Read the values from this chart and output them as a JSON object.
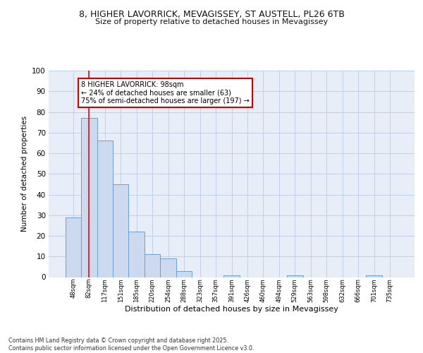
{
  "title_line1": "8, HIGHER LAVORRICK, MEVAGISSEY, ST AUSTELL, PL26 6TB",
  "title_line2": "Size of property relative to detached houses in Mevagissey",
  "xlabel": "Distribution of detached houses by size in Mevagissey",
  "ylabel": "Number of detached properties",
  "categories": [
    "48sqm",
    "82sqm",
    "117sqm",
    "151sqm",
    "185sqm",
    "220sqm",
    "254sqm",
    "288sqm",
    "323sqm",
    "357sqm",
    "391sqm",
    "426sqm",
    "460sqm",
    "494sqm",
    "529sqm",
    "563sqm",
    "598sqm",
    "632sqm",
    "666sqm",
    "701sqm",
    "735sqm"
  ],
  "values": [
    29,
    77,
    66,
    45,
    22,
    11,
    9,
    3,
    0,
    0,
    1,
    0,
    0,
    0,
    1,
    0,
    0,
    0,
    0,
    1,
    0
  ],
  "bar_color": "#ccd9ee",
  "bar_edge_color": "#6b9fd4",
  "grid_color": "#c0cfe8",
  "bg_color": "#e8eef8",
  "red_line_x": 1,
  "annotation_text": "8 HIGHER LAVORRICK: 98sqm\n← 24% of detached houses are smaller (63)\n75% of semi-detached houses are larger (197) →",
  "annotation_box_color": "#ffffff",
  "annotation_box_edge": "#cc0000",
  "footnote": "Contains HM Land Registry data © Crown copyright and database right 2025.\nContains public sector information licensed under the Open Government Licence v3.0.",
  "ylim": [
    0,
    100
  ],
  "yticks": [
    0,
    10,
    20,
    30,
    40,
    50,
    60,
    70,
    80,
    90,
    100
  ]
}
